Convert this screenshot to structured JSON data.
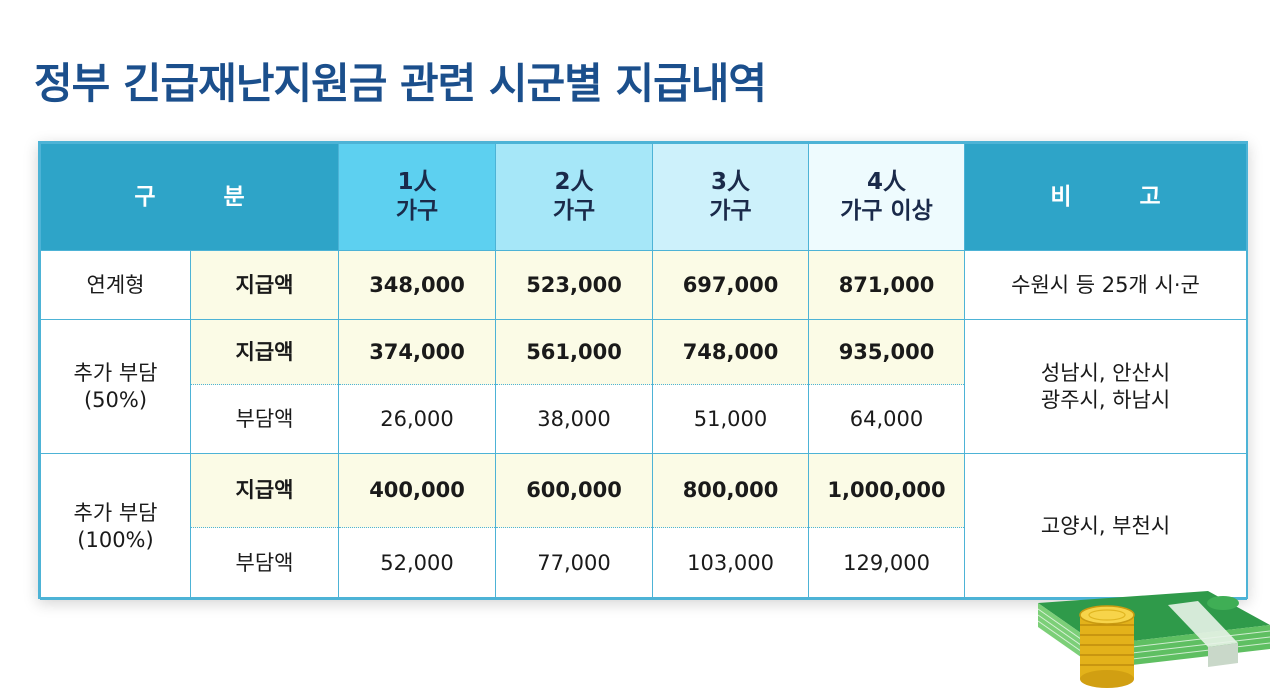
{
  "title": "정부 긴급재난지원금 관련 시군별 지급내역",
  "header": {
    "category": "구 분",
    "col1_line1": "1人",
    "col1_line2": "가구",
    "col2_line1": "2人",
    "col2_line2": "가구",
    "col3_line1": "3人",
    "col3_line2": "가구",
    "col4_line1": "4人",
    "col4_line2": "가구 이상",
    "remarks": "비 고"
  },
  "rows": {
    "linked": {
      "category": "연계형",
      "pay_label": "지급액",
      "pay": [
        "348,000",
        "523,000",
        "697,000",
        "871,000"
      ],
      "remarks": "수원시 등 25개 시·군"
    },
    "extra50": {
      "category_line1": "추가 부담",
      "category_line2": "(50%)",
      "pay_label": "지급액",
      "pay": [
        "374,000",
        "561,000",
        "748,000",
        "935,000"
      ],
      "burden_label": "부담액",
      "burden": [
        "26,000",
        "38,000",
        "51,000",
        "64,000"
      ],
      "remarks_line1": "성남시, 안산시",
      "remarks_line2": "광주시, 하남시"
    },
    "extra100": {
      "category_line1": "추가 부담",
      "category_line2": "(100%)",
      "pay_label": "지급액",
      "pay": [
        "400,000",
        "600,000",
        "800,000",
        "1,000,000"
      ],
      "burden_label": "부담액",
      "burden": [
        "52,000",
        "77,000",
        "103,000",
        "129,000"
      ],
      "remarks": "고양시, 부천시"
    }
  },
  "colors": {
    "title": "#1b4f8c",
    "border": "#4db3d6",
    "header_dark": "#2ea4c8",
    "header_1": "#5dd0f0",
    "header_2": "#a6e7f8",
    "header_3": "#cdf1fb",
    "header_4": "#eefbfe",
    "highlight_row": "#fbfbe6"
  },
  "decoration": "money-stack-and-coins-icon"
}
